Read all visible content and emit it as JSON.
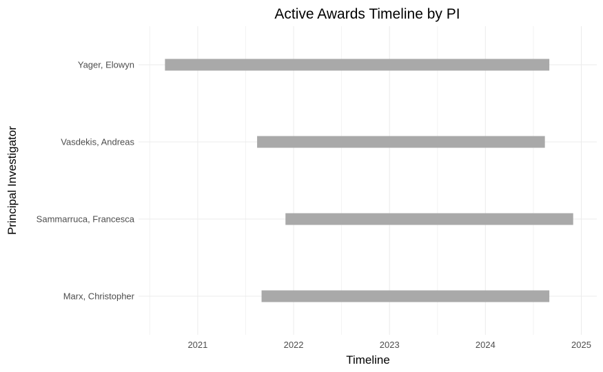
{
  "chart_data": {
    "type": "gantt",
    "title": "Active Awards Timeline by PI",
    "xlabel": "Timeline",
    "ylabel": "Principal Investigator",
    "x_ticks": [
      "2021",
      "2022",
      "2023",
      "2024",
      "2025"
    ],
    "xlim": [
      "2020-05-20",
      "2025-03-01"
    ],
    "grid": true,
    "bar_color": "#a9a9a9",
    "categories": [
      "Yager, Elowyn",
      "Vasdekis, Andreas",
      "Sammarruca, Francesca",
      "Marx, Christopher"
    ],
    "bars": [
      {
        "label": "Yager, Elowyn",
        "start": "2020-08-29",
        "end": "2024-09-01"
      },
      {
        "label": "Vasdekis, Andreas",
        "start": "2021-08-15",
        "end": "2024-08-15"
      },
      {
        "label": "Sammarruca, Francesca",
        "start": "2021-12-01",
        "end": "2024-12-01"
      },
      {
        "label": "Marx, Christopher",
        "start": "2021-09-01",
        "end": "2024-09-01"
      }
    ]
  }
}
